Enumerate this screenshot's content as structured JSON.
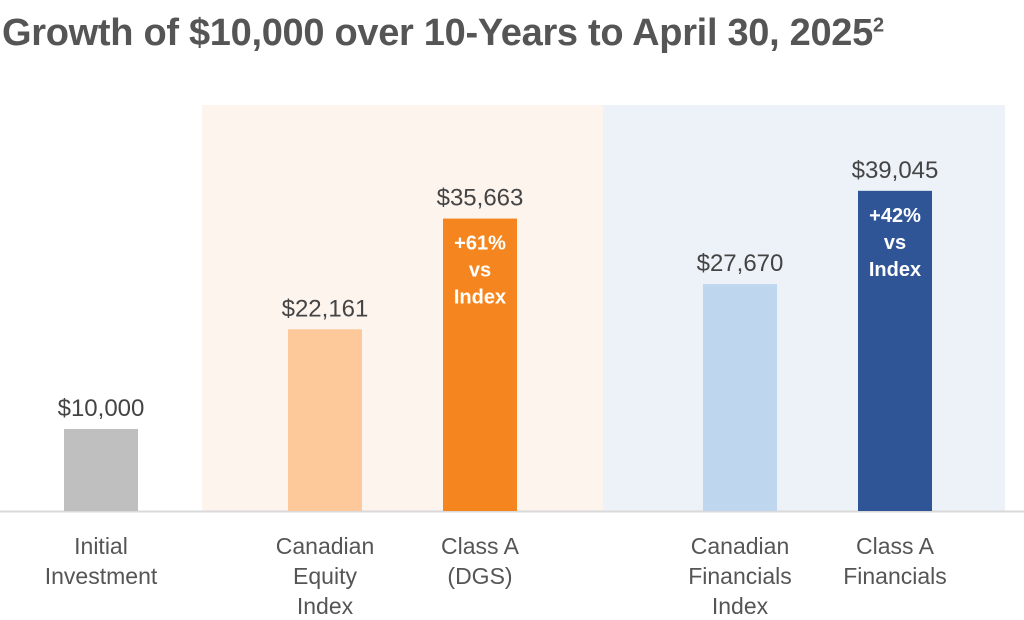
{
  "chart_data": {
    "type": "bar",
    "title": "Growth of $10,000 over 10-Years to April 30, 2025",
    "title_superscript": "2",
    "xlabel": "",
    "ylabel": "",
    "ylim": [
      0,
      45000
    ],
    "grid": false,
    "legend": "none",
    "categories": [
      [
        "Initial",
        "Investment"
      ],
      [
        "Canadian",
        "Equity",
        "Index"
      ],
      [
        "Class A",
        "(DGS)"
      ],
      [
        "Canadian",
        "Financials",
        "Index"
      ],
      [
        "Class A",
        "Financials"
      ]
    ],
    "values": [
      10000,
      22161,
      35663,
      27670,
      39045
    ],
    "value_labels": [
      "$10,000",
      "$22,161",
      "$35,663",
      "$27,670",
      "$39,045"
    ],
    "bar_annotations": [
      null,
      null,
      [
        "+61%",
        "vs",
        "Index"
      ],
      null,
      [
        "+42%",
        "vs",
        "Index"
      ]
    ],
    "bar_colors": [
      "#bfbfbf",
      "#fdc99b",
      "#f5861f",
      "#bfd6ef",
      "#2f5597"
    ],
    "group_backgrounds": [
      "#fdf4ee",
      "#edf2f8"
    ],
    "colors": {
      "title": "#555555",
      "value_label": "#444444",
      "category_label": "#555555",
      "annotation": "#ffffff",
      "baseline": "#d9d9d9"
    }
  }
}
